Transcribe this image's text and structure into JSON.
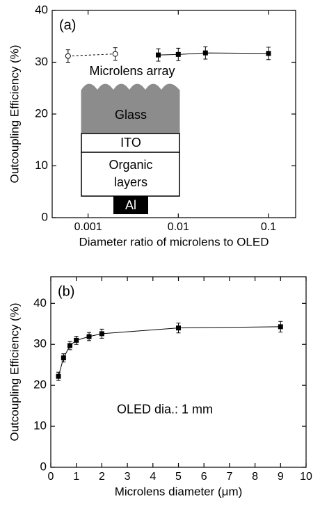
{
  "chart_data": [
    {
      "type": "scatter",
      "label": "(a)",
      "x_label": "Diameter ratio of microlens to OLED",
      "y_label": "Outcoupling Efficiency (%)",
      "xscale": "log",
      "xlim": [
        0.0004,
        0.2
      ],
      "xticks": [
        0.001,
        0.01,
        0.1
      ],
      "ylim": [
        0,
        40
      ],
      "yticks": [
        0,
        10,
        20,
        30,
        40
      ],
      "series": [
        {
          "color": "#000000",
          "marker": "open-circle",
          "dashed": true,
          "x": [
            0.0006,
            0.002
          ],
          "values": [
            31.2,
            31.6
          ],
          "errors": [
            1.2,
            1.2
          ]
        },
        {
          "color": "#000000",
          "marker": "square",
          "dashed": false,
          "x": [
            0.006,
            0.01,
            0.02,
            0.1
          ],
          "values": [
            31.4,
            31.5,
            31.8,
            31.7
          ],
          "errors": [
            1.2,
            1.2,
            1.2,
            1.2
          ]
        }
      ],
      "inset_labels": [
        "Microlens array",
        "Glass",
        "ITO",
        "Organic",
        "layers",
        "Al"
      ]
    },
    {
      "type": "scatter",
      "label": "(b)",
      "annotation": "OLED dia.: 1 mm",
      "x_label": "Microlens diameter (μm)",
      "y_label": "Outcoupling Efficiency (%)",
      "xscale": "linear",
      "xlim": [
        0,
        10
      ],
      "xticks": [
        0,
        1,
        2,
        3,
        4,
        5,
        6,
        7,
        8,
        9,
        10
      ],
      "ylim": [
        0,
        46.5
      ],
      "yticks": [
        0,
        10,
        20,
        30,
        40
      ],
      "series": [
        {
          "color": "#000000",
          "marker": "square",
          "dashed": false,
          "x": [
            0.3,
            0.5,
            0.75,
            1,
            1.5,
            2,
            5,
            9
          ],
          "values": [
            22.2,
            26.7,
            29.7,
            31,
            31.9,
            32.6,
            34,
            34.3
          ],
          "errors": [
            1,
            1,
            1,
            1,
            1,
            1.1,
            1.2,
            1.3
          ]
        }
      ]
    }
  ]
}
